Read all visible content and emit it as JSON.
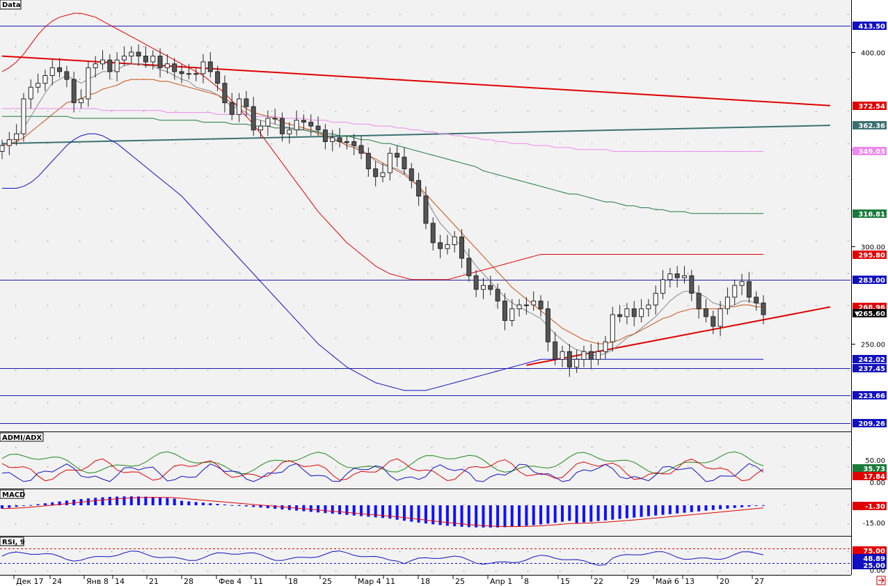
{
  "main_panel": {
    "title": "Data",
    "hlines": [
      413.5,
      283.0,
      237.45,
      223.66,
      209.26
    ],
    "hline_labels": [
      "413.50",
      "283.00",
      "237.45",
      "223.66",
      "209.26"
    ],
    "ticks": [
      400,
      350,
      300,
      250
    ],
    "tick_labels": [
      "400.00",
      "350.00",
      "300.00",
      "250.00"
    ],
    "badges": [
      {
        "text": "372.54",
        "value": 372.54,
        "color": "#e00000"
      },
      {
        "text": "362.36",
        "value": 362.36,
        "color": "#3a7070"
      },
      {
        "text": "349.03",
        "value": 349.03,
        "color": "#ee88ee"
      },
      {
        "text": "316.81",
        "value": 316.81,
        "color": "#1a7a3a"
      },
      {
        "text": "295.80",
        "value": 295.8,
        "color": "#e00000"
      },
      {
        "text": "268.96",
        "value": 268.96,
        "color": "#e00000"
      },
      {
        "text": "265.60",
        "value": 265.6,
        "color": "#000000",
        "marker": "▼"
      },
      {
        "text": "242.02",
        "value": 242.02,
        "color": "#1010c0"
      }
    ]
  },
  "adx_panel": {
    "title": "ADMI/ADX",
    "ticks": [
      "50.00",
      "0.00"
    ],
    "badges": [
      {
        "text": "35.73",
        "color": "#1a7a3a"
      },
      {
        "text": "17.84",
        "color": "#e00000"
      }
    ]
  },
  "macd_panel": {
    "title": "MACD",
    "ticks": [
      "-15.00"
    ],
    "badges": [
      {
        "text": "-1.30",
        "color": "#e00000"
      }
    ]
  },
  "rsi_panel": {
    "title": "RSI, 9",
    "badges": [
      {
        "text": "75.00",
        "color": "#e00000"
      },
      {
        "text": "48.89",
        "color": "#1010c0"
      },
      {
        "text": "25.00",
        "color": "#1010c0"
      }
    ],
    "tick": "0.00"
  },
  "date_axis": {
    "labels": [
      "Дек 17",
      "24",
      "Янв 8",
      "14",
      "21",
      "28",
      "Фев 4",
      "11",
      "18",
      "25",
      "Мар 4",
      "11",
      "18",
      "25",
      "Апр 1",
      "8",
      "15",
      "22",
      "29",
      "Май 6",
      "13",
      "20",
      "27"
    ]
  },
  "chart_data": {
    "type": "candlestick",
    "title": "Data",
    "xlabel": "",
    "ylabel": "",
    "ylim": [
      200,
      420
    ],
    "x_labels": [
      "Дек 17",
      "24",
      "Янв 8",
      "14",
      "21",
      "28",
      "Фев 4",
      "11",
      "18",
      "25",
      "Мар 4",
      "11",
      "18",
      "25",
      "Апр 1",
      "8",
      "15",
      "22",
      "29",
      "Май 6",
      "13",
      "20",
      "27"
    ],
    "close": [
      352,
      355,
      358,
      376,
      382,
      384,
      388,
      392,
      390,
      386,
      374,
      376,
      392,
      394,
      396,
      390,
      396,
      398,
      400,
      398,
      395,
      398,
      392,
      394,
      390,
      389,
      389,
      389,
      395,
      390,
      384,
      374,
      368,
      376,
      372,
      360,
      362,
      366,
      366,
      358,
      360,
      365,
      364,
      362,
      360,
      354,
      356,
      354,
      354,
      352,
      348,
      340,
      336,
      338,
      348,
      346,
      340,
      334,
      326,
      312,
      302,
      299,
      301,
      305,
      294,
      285,
      278,
      280,
      278,
      272,
      262,
      268,
      270,
      270,
      272,
      268,
      251,
      242,
      246,
      238,
      242,
      246,
      242,
      246,
      251,
      265,
      264,
      268,
      264,
      268,
      270,
      276,
      283,
      286,
      284,
      285,
      276,
      268,
      264,
      259,
      268,
      274,
      280,
      282,
      274,
      271,
      265
    ],
    "series": [
      {
        "name": "",
        "color": "#888888",
        "values": [
          352,
          354,
          356,
          361,
          367,
          373,
          379,
          384,
          386,
          388,
          386,
          384,
          386,
          388,
          390,
          390,
          391,
          393,
          394,
          394,
          393,
          393,
          391,
          390,
          388,
          386,
          385,
          382,
          381,
          380,
          378,
          375,
          372,
          371,
          369,
          366,
          365,
          364,
          363,
          362,
          361,
          361,
          360,
          360,
          359,
          357,
          356,
          354,
          353,
          352,
          350,
          347,
          344,
          342,
          341,
          340,
          338,
          335,
          331,
          325,
          318,
          312,
          308,
          304,
          300,
          295,
          290,
          286,
          282,
          278,
          274,
          271,
          269,
          267,
          265,
          263,
          259,
          255,
          252,
          249,
          247,
          246,
          244,
          244,
          245,
          247,
          250,
          253,
          255,
          258,
          261,
          264,
          268,
          272,
          275,
          277,
          277,
          276,
          274,
          271,
          270,
          269,
          270,
          272,
          272,
          271,
          270
        ]
      },
      {
        "name": "",
        "color": "#c85010",
        "values": [
          352,
          353,
          354,
          356,
          359,
          362,
          365,
          368,
          371,
          374,
          375,
          376,
          378,
          379,
          381,
          382,
          383,
          385,
          386,
          386,
          386,
          386,
          385,
          385,
          384,
          383,
          382,
          381,
          380,
          379,
          378,
          376,
          374,
          373,
          371,
          369,
          368,
          367,
          366,
          364,
          363,
          362,
          361,
          360,
          358,
          357,
          355,
          354,
          352,
          351,
          349,
          347,
          345,
          343,
          341,
          339,
          337,
          334,
          331,
          327,
          323,
          319,
          315,
          311,
          307,
          303,
          299,
          295,
          291,
          287,
          283,
          279,
          276,
          273,
          270,
          267,
          264,
          261,
          258,
          256,
          254,
          252,
          251,
          250,
          250,
          251,
          252,
          254,
          255,
          257,
          259,
          261,
          263,
          264,
          266,
          267,
          268,
          268,
          268,
          268,
          268,
          269,
          269,
          270,
          270,
          269,
          269
        ]
      },
      {
        "name": "",
        "color": "#1a7a3a",
        "values": [
          367,
          367,
          367,
          367,
          367,
          367,
          367,
          367,
          367,
          367,
          366,
          366,
          366,
          366,
          366,
          366,
          366,
          366,
          366,
          366,
          366,
          366,
          365,
          365,
          365,
          365,
          365,
          365,
          364,
          364,
          364,
          364,
          363,
          363,
          363,
          362,
          362,
          362,
          361,
          361,
          361,
          360,
          360,
          359,
          359,
          358,
          358,
          357,
          357,
          356,
          355,
          355,
          354,
          353,
          353,
          352,
          351,
          350,
          349,
          348,
          347,
          346,
          345,
          344,
          343,
          342,
          341,
          339,
          338,
          337,
          336,
          335,
          334,
          333,
          332,
          331,
          330,
          329,
          328,
          327,
          327,
          326,
          325,
          324,
          323,
          323,
          322,
          321,
          321,
          320,
          320,
          319,
          319,
          318,
          318,
          318,
          317,
          317,
          317,
          317,
          317,
          317,
          317,
          317,
          317,
          317,
          317
        ]
      },
      {
        "name": "",
        "color": "#ee88ee",
        "values": [
          371,
          371,
          371,
          371,
          371,
          371,
          371,
          371,
          371,
          371,
          371,
          371,
          371,
          371,
          370,
          370,
          370,
          370,
          370,
          370,
          370,
          370,
          370,
          369,
          369,
          369,
          369,
          369,
          369,
          369,
          368,
          368,
          368,
          368,
          368,
          367,
          367,
          367,
          367,
          366,
          366,
          366,
          366,
          365,
          365,
          365,
          364,
          364,
          364,
          363,
          363,
          363,
          362,
          362,
          362,
          361,
          361,
          360,
          360,
          359,
          359,
          358,
          358,
          357,
          357,
          356,
          356,
          355,
          355,
          354,
          354,
          353,
          353,
          353,
          352,
          352,
          352,
          351,
          351,
          351,
          350,
          350,
          350,
          350,
          350,
          349,
          349,
          349,
          349,
          349,
          349,
          349,
          349,
          349,
          349,
          349,
          349,
          349,
          349,
          349,
          349,
          349,
          349,
          349,
          349,
          349,
          349
        ]
      },
      {
        "name": "",
        "color": "#e00000",
        "values": [
          390,
          392,
          395,
          399,
          404,
          409,
          413,
          416,
          418,
          419,
          420,
          420,
          419,
          418,
          416,
          414,
          412,
          410,
          408,
          406,
          404,
          402,
          400,
          398,
          396,
          394,
          392,
          390,
          388,
          385,
          382,
          379,
          375,
          371,
          367,
          363,
          358,
          353,
          348,
          343,
          338,
          333,
          328,
          323,
          318,
          314,
          310,
          306,
          302,
          299,
          296,
          293,
          290,
          288,
          286,
          285,
          284,
          283,
          283,
          283,
          283,
          283,
          283,
          284,
          285,
          286,
          287,
          288,
          289,
          290,
          291,
          292,
          293,
          294,
          295,
          296,
          296,
          296,
          296,
          296,
          296,
          296,
          296,
          296,
          296,
          296,
          296,
          296,
          296,
          296,
          296,
          296,
          296,
          296,
          296,
          296,
          296,
          296,
          296,
          296,
          296,
          296,
          296,
          296,
          296,
          296,
          296
        ]
      },
      {
        "name": "",
        "color": "#1010c0",
        "values": [
          330,
          330,
          330,
          331,
          333,
          336,
          340,
          344,
          348,
          352,
          355,
          357,
          358,
          358,
          357,
          355,
          353,
          350,
          347,
          344,
          341,
          338,
          335,
          332,
          329,
          326,
          322,
          318,
          314,
          310,
          306,
          302,
          298,
          294,
          290,
          286,
          282,
          278,
          274,
          270,
          266,
          262,
          258,
          254,
          250,
          247,
          244,
          241,
          238,
          236,
          234,
          232,
          230,
          229,
          228,
          227,
          226,
          226,
          226,
          226,
          227,
          228,
          229,
          230,
          231,
          232,
          233,
          234,
          235,
          236,
          237,
          238,
          239,
          240,
          241,
          242,
          242,
          242,
          242,
          242,
          242,
          242,
          242,
          242,
          242,
          242,
          242,
          242,
          242,
          242,
          242,
          242,
          242,
          242,
          242,
          242,
          242,
          242,
          242,
          242,
          242,
          242,
          242,
          242,
          242,
          242,
          242
        ]
      }
    ],
    "trendlines": [
      {
        "name": "",
        "color": "#e00000",
        "from": [
          0,
          398
        ],
        "to": [
          106,
          372.54
        ]
      },
      {
        "name": "",
        "color": "#3a7070",
        "from": [
          0,
          353
        ],
        "to": [
          106,
          362.36
        ]
      },
      {
        "name": "",
        "color": "#e00000",
        "from": [
          73,
          239
        ],
        "to": [
          106,
          268.96
        ]
      }
    ],
    "grid": true,
    "legend": "none"
  }
}
